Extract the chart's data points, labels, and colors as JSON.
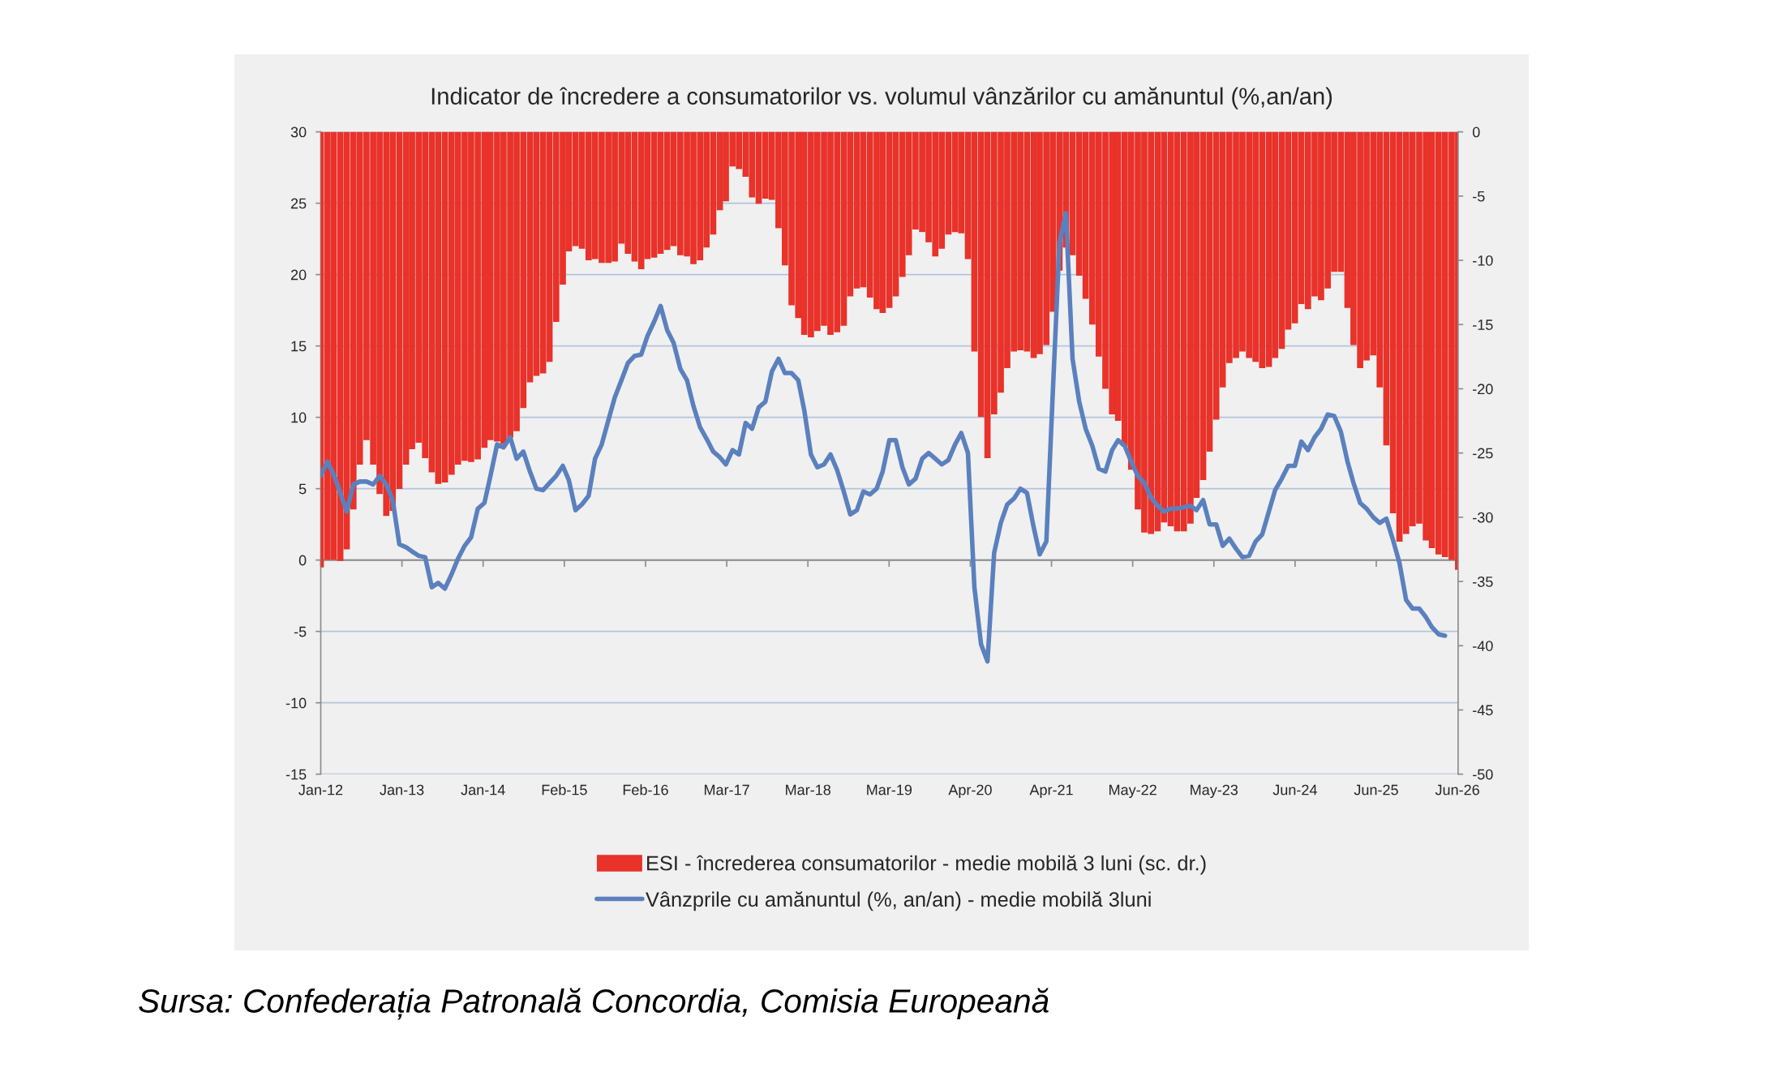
{
  "chart_data": {
    "type": "bar",
    "title": "Indicator de încredere a consumatorilor vs. volumul vânzărilor cu amănuntul (%,an/an)",
    "x": [
      "2012-01",
      "2012-02",
      "2012-03",
      "2012-04",
      "2012-05",
      "2012-06",
      "2012-07",
      "2012-08",
      "2012-09",
      "2012-10",
      "2012-11",
      "2012-12",
      "2013-01",
      "2013-02",
      "2013-03",
      "2013-04",
      "2013-05",
      "2013-06",
      "2013-07",
      "2013-08",
      "2013-09",
      "2013-10",
      "2013-11",
      "2013-12",
      "2014-01",
      "2014-02",
      "2014-03",
      "2014-04",
      "2014-05",
      "2014-06",
      "2014-07",
      "2014-08",
      "2014-09",
      "2014-10",
      "2014-11",
      "2014-12",
      "2015-01",
      "2015-02",
      "2015-03",
      "2015-04",
      "2015-05",
      "2015-06",
      "2015-07",
      "2015-08",
      "2015-09",
      "2015-10",
      "2015-11",
      "2015-12",
      "2016-01",
      "2016-02",
      "2016-03",
      "2016-04",
      "2016-05",
      "2016-06",
      "2016-07",
      "2016-08",
      "2016-09",
      "2016-10",
      "2016-11",
      "2016-12",
      "2017-01",
      "2017-02",
      "2017-03",
      "2017-04",
      "2017-05",
      "2017-06",
      "2017-07",
      "2017-08",
      "2017-09",
      "2017-10",
      "2017-11",
      "2017-12",
      "2018-01",
      "2018-02",
      "2018-03",
      "2018-04",
      "2018-05",
      "2018-06",
      "2018-07",
      "2018-08",
      "2018-09",
      "2018-10",
      "2018-11",
      "2018-12",
      "2019-01",
      "2019-02",
      "2019-03",
      "2019-04",
      "2019-05",
      "2019-06",
      "2019-07",
      "2019-08",
      "2019-09",
      "2019-10",
      "2019-11",
      "2019-12",
      "2020-01",
      "2020-02",
      "2020-03",
      "2020-04",
      "2020-05",
      "2020-06",
      "2020-07",
      "2020-08",
      "2020-09",
      "2020-10",
      "2020-11",
      "2020-12",
      "2021-01",
      "2021-02",
      "2021-03",
      "2021-04",
      "2021-05",
      "2021-06",
      "2021-07",
      "2021-08",
      "2021-09",
      "2021-10",
      "2021-11",
      "2021-12",
      "2022-01",
      "2022-02",
      "2022-03",
      "2022-04",
      "2022-05",
      "2022-06",
      "2022-07",
      "2022-08",
      "2022-09",
      "2022-10",
      "2022-11",
      "2022-12",
      "2023-01",
      "2023-02",
      "2023-03",
      "2023-04",
      "2023-05",
      "2023-06",
      "2023-07",
      "2023-08",
      "2023-09",
      "2023-10",
      "2023-11",
      "2023-12",
      "2024-01",
      "2024-02",
      "2024-03",
      "2024-04",
      "2024-05",
      "2024-06",
      "2024-07",
      "2024-08",
      "2024-09",
      "2024-10",
      "2024-11",
      "2024-12",
      "2025-01",
      "2025-02",
      "2025-03",
      "2025-04",
      "2025-05",
      "2025-06",
      "2025-07",
      "2025-08",
      "2025-09",
      "2025-10",
      "2025-11",
      "2025-12",
      "2026-01",
      "2026-02",
      "2026-03",
      "2026-04",
      "2026-05",
      "2026-06",
      "2026-07"
    ],
    "xlim": [
      "2012-01-01",
      "2026-07-01"
    ],
    "xticks": [
      {
        "value": "2012-01-01",
        "label": "Jan-12"
      },
      {
        "value": "2013-01-13",
        "label": "Jan-13"
      },
      {
        "value": "2014-01-26",
        "label": "Jan-14"
      },
      {
        "value": "2015-02-08",
        "label": "Feb-15"
      },
      {
        "value": "2016-02-21",
        "label": "Feb-16"
      },
      {
        "value": "2017-03-05",
        "label": "Mar-17"
      },
      {
        "value": "2018-03-18",
        "label": "Mar-18"
      },
      {
        "value": "2019-03-31",
        "label": "Mar-19"
      },
      {
        "value": "2020-04-12",
        "label": "Apr-20"
      },
      {
        "value": "2021-04-25",
        "label": "Apr-21"
      },
      {
        "value": "2022-05-08",
        "label": "May-22"
      },
      {
        "value": "2023-05-21",
        "label": "May-23"
      },
      {
        "value": "2024-06-02",
        "label": "Jun-24"
      },
      {
        "value": "2025-06-15",
        "label": "Jun-25"
      },
      {
        "value": "2026-06-28",
        "label": "Jun-26"
      }
    ],
    "ylim": [
      -15,
      30
    ],
    "yticks": [
      -15,
      -10,
      -5,
      0,
      5,
      10,
      15,
      20,
      25,
      30
    ],
    "y2lim": [
      -50,
      0
    ],
    "y2ticks": [
      -50,
      -45,
      -40,
      -35,
      -30,
      -25,
      -20,
      -15,
      -10,
      -5,
      0
    ],
    "grid": "y",
    "legend": "bottom",
    "series": [
      {
        "name": "ESI - încrederea consumatorilor - medie mobilă 3 luni (sc. dr.)",
        "axis": "y2",
        "color": "#e8322a",
        "values": [
          -33.9,
          -33.3,
          -33.3,
          -33.4,
          -32.5,
          -29.4,
          -25.9,
          -24.0,
          -25.9,
          -28.2,
          -29.9,
          -29.5,
          -27.8,
          -25.9,
          -24.7,
          -24.2,
          -25.4,
          -26.5,
          -27.4,
          -27.3,
          -26.7,
          -25.9,
          -25.6,
          -25.7,
          -25.5,
          -24.6,
          -24.0,
          -24.1,
          -24.3,
          -23.8,
          -23.3,
          -21.5,
          -19.5,
          -19.0,
          -18.8,
          -17.9,
          -14.8,
          -11.9,
          -9.3,
          -8.9,
          -9.1,
          -10.0,
          -9.9,
          -10.2,
          -10.2,
          -10.1,
          -8.7,
          -9.5,
          -10.1,
          -10.7,
          -9.9,
          -9.8,
          -9.5,
          -9.2,
          -8.9,
          -9.6,
          -9.7,
          -10.3,
          -10.0,
          -9.0,
          -8.0,
          -6.1,
          -5.4,
          -2.7,
          -2.9,
          -3.5,
          -5.1,
          -5.6,
          -5.2,
          -5.3,
          -7.5,
          -10.4,
          -13.5,
          -14.5,
          -15.8,
          -16.0,
          -15.5,
          -15.1,
          -15.8,
          -15.6,
          -15.1,
          -12.8,
          -12.2,
          -12.1,
          -12.9,
          -13.8,
          -14.1,
          -13.7,
          -12.8,
          -11.3,
          -9.6,
          -7.6,
          -7.8,
          -8.6,
          -9.7,
          -9.1,
          -8.0,
          -7.8,
          -7.9,
          -9.9,
          -17.1,
          -22.2,
          -25.4,
          -22.0,
          -20.3,
          -18.4,
          -17.1,
          -17.0,
          -17.1,
          -17.6,
          -17.3,
          -16.6,
          -14.0,
          -10.8,
          -9.0,
          -9.6,
          -11.2,
          -13.0,
          -15.0,
          -17.5,
          -20.0,
          -22.0,
          -22.5,
          -24.5,
          -26.3,
          -29.4,
          -31.2,
          -31.3,
          -31.1,
          -30.4,
          -30.7,
          -31.1,
          -31.1,
          -30.5,
          -28.5,
          -27.1,
          -24.9,
          -22.4,
          -19.9,
          -18.0,
          -17.6,
          -17.1,
          -17.6,
          -17.9,
          -18.4,
          -18.3,
          -17.6,
          -16.9,
          -15.4,
          -14.9,
          -13.4,
          -13.8,
          -12.8,
          -13.1,
          -12.2,
          -10.9,
          -10.9,
          -13.7,
          -16.6,
          -18.4,
          -17.8,
          -17.4,
          -19.9,
          -24.4,
          -29.7,
          -31.9,
          -31.3,
          -30.7,
          -30.5,
          -31.8,
          -32.4,
          -32.9,
          -33.1,
          -33.3,
          -34.1
        ]
      },
      {
        "name": "Vânzprile cu amănuntul (%, an/an) - medie mobilă 3luni",
        "type": "line",
        "axis": "y",
        "color": "#5b80be",
        "x": [
          "2012-01",
          "2012-02",
          "2012-03",
          "2012-04",
          "2012-05",
          "2012-06",
          "2012-07",
          "2012-08",
          "2012-09",
          "2012-10",
          "2012-11",
          "2012-12",
          "2013-01",
          "2013-02",
          "2013-03",
          "2013-04",
          "2013-05",
          "2013-06",
          "2013-07",
          "2013-08",
          "2013-09",
          "2013-10",
          "2013-11",
          "2013-12",
          "2014-01",
          "2014-02",
          "2014-03",
          "2014-04",
          "2014-05",
          "2014-06",
          "2014-07",
          "2014-08",
          "2014-09",
          "2014-10",
          "2014-11",
          "2014-12",
          "2015-01",
          "2015-02",
          "2015-03",
          "2015-04",
          "2015-05",
          "2015-06",
          "2015-07",
          "2015-08",
          "2015-09",
          "2015-10",
          "2015-11",
          "2015-12",
          "2016-01",
          "2016-02",
          "2016-03",
          "2016-04",
          "2016-05",
          "2016-06",
          "2016-07",
          "2016-08",
          "2016-09",
          "2016-10",
          "2016-11",
          "2016-12",
          "2017-01",
          "2017-02",
          "2017-03",
          "2017-04",
          "2017-05",
          "2017-06",
          "2017-07",
          "2017-08",
          "2017-09",
          "2017-10",
          "2017-11",
          "2017-12",
          "2018-01",
          "2018-02",
          "2018-03",
          "2018-04",
          "2018-05",
          "2018-06",
          "2018-07",
          "2018-08",
          "2018-09",
          "2018-10",
          "2018-11",
          "2018-12",
          "2019-01",
          "2019-02",
          "2019-03",
          "2019-04",
          "2019-05",
          "2019-06",
          "2019-07",
          "2019-08",
          "2019-09",
          "2019-10",
          "2019-11",
          "2019-12",
          "2020-01",
          "2020-02",
          "2020-03",
          "2020-04",
          "2020-05",
          "2020-06",
          "2020-07",
          "2020-08",
          "2020-09",
          "2020-10",
          "2020-11",
          "2020-12",
          "2021-01",
          "2021-02",
          "2021-03",
          "2021-04",
          "2021-05",
          "2021-06",
          "2021-07",
          "2021-08",
          "2021-09",
          "2021-10",
          "2021-11",
          "2021-12",
          "2022-01",
          "2022-02",
          "2022-03",
          "2022-04",
          "2022-05",
          "2022-06",
          "2022-07",
          "2022-08",
          "2022-09",
          "2022-10",
          "2022-11",
          "2022-12",
          "2023-01",
          "2023-02",
          "2023-03",
          "2023-04",
          "2023-05",
          "2023-06",
          "2023-07",
          "2023-08",
          "2023-09",
          "2023-10",
          "2023-11",
          "2023-12",
          "2024-01",
          "2024-02",
          "2024-03",
          "2024-04",
          "2024-05",
          "2024-06",
          "2024-07",
          "2024-08",
          "2024-09",
          "2024-10",
          "2024-11",
          "2024-12",
          "2025-01",
          "2025-02",
          "2025-03",
          "2025-04",
          "2025-05",
          "2025-06",
          "2025-07",
          "2025-08",
          "2025-09",
          "2025-10",
          "2025-11",
          "2025-12",
          "2026-01",
          "2026-02",
          "2026-03",
          "2026-04",
          "2026-05"
        ],
        "values": [
          5.9,
          6.9,
          6.0,
          4.7,
          3.4,
          5.3,
          5.5,
          5.5,
          5.3,
          5.9,
          5.3,
          4.2,
          1.1,
          0.9,
          0.6,
          0.3,
          0.2,
          -1.9,
          -1.6,
          -2.0,
          -1.0,
          0.1,
          1.0,
          1.6,
          3.6,
          4.0,
          5.9,
          8.1,
          7.9,
          8.6,
          7.1,
          7.6,
          6.2,
          5.0,
          4.9,
          5.4,
          5.9,
          6.6,
          5.6,
          3.5,
          3.9,
          4.5,
          7.1,
          8.1,
          9.8,
          11.4,
          12.6,
          13.8,
          14.3,
          14.4,
          15.7,
          16.7,
          17.8,
          16.1,
          15.2,
          13.4,
          12.6,
          10.8,
          9.3,
          8.5,
          7.6,
          7.2,
          6.7,
          7.7,
          7.4,
          9.6,
          9.2,
          10.7,
          11.1,
          13.2,
          14.1,
          13.1,
          13.1,
          12.6,
          10.5,
          7.4,
          6.5,
          6.7,
          7.4,
          6.3,
          4.8,
          3.2,
          3.5,
          4.8,
          4.6,
          5.0,
          6.2,
          8.4,
          8.4,
          6.5,
          5.3,
          5.7,
          7.1,
          7.5,
          7.1,
          6.7,
          7.0,
          8.1,
          8.9,
          7.5,
          -1.9,
          -5.9,
          -7.1,
          0.5,
          2.6,
          3.9,
          4.3,
          5.0,
          4.7,
          2.3,
          0.4,
          1.3,
          11.7,
          22.2,
          24.3,
          14.1,
          11.1,
          9.2,
          8.0,
          6.4,
          6.2,
          7.7,
          8.4,
          8.0,
          6.9,
          5.9,
          5.4,
          4.4,
          3.8,
          3.4,
          3.6,
          3.6,
          3.7,
          3.8,
          3.5,
          4.2,
          2.5,
          2.5,
          1.0,
          1.5,
          0.8,
          0.2,
          0.3,
          1.3,
          1.8,
          3.4,
          4.9,
          5.7,
          6.6,
          6.6,
          8.3,
          7.7,
          8.6,
          9.2,
          10.2,
          10.1,
          9.0,
          6.9,
          5.4,
          4.0,
          3.6,
          3.0,
          2.6,
          2.9,
          1.4,
          -0.2,
          -2.8,
          -3.4,
          -3.4,
          -4.0,
          -4.7,
          -5.2,
          -5.3
        ]
      }
    ],
    "annotations": [
      "Sursa: Confederația Patronală Concordia, Comisia Europeană"
    ]
  }
}
